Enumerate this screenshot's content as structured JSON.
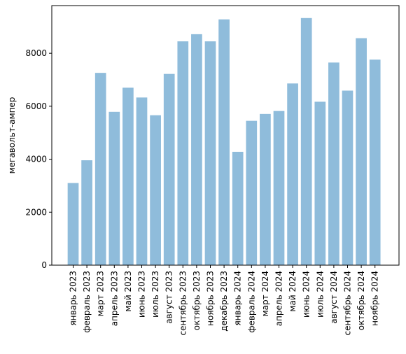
{
  "chart_data": {
    "type": "bar",
    "title": "",
    "xlabel": "",
    "ylabel": "мегавольт-ампер",
    "ylim": [
      0,
      9800
    ],
    "yticks": [
      0,
      2000,
      4000,
      6000,
      8000
    ],
    "grid": false,
    "bar_color": "#8fbcdb",
    "categories": [
      "январь 2023",
      "февраль 2023",
      "март 2023",
      "апрель 2023",
      "май 2023",
      "июнь 2023",
      "июль 2023",
      "август 2023",
      "сентябрь 2023",
      "октябрь 2023",
      "ноябрь 2023",
      "декабрь 2023",
      "январь 2024",
      "февраль 2024",
      "март 2024",
      "апрель 2024",
      "май 2024",
      "июнь 2024",
      "июль 2024",
      "август 2024",
      "сентябрь 2024",
      "октябрь 2024",
      "ноябрь 2024"
    ],
    "values": [
      3100,
      3960,
      7260,
      5790,
      6700,
      6330,
      5660,
      7220,
      8450,
      8720,
      8450,
      9280,
      4280,
      5450,
      5710,
      5820,
      6860,
      9330,
      6170,
      7650,
      6590,
      8570,
      7760
    ]
  }
}
